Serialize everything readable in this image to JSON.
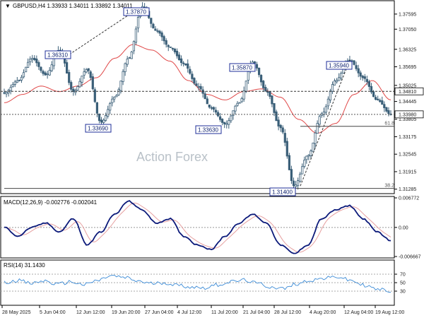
{
  "header": {
    "title": "GBPUSD,H4  1.33933 1.34011 1.33892 1.34011",
    "arrow": "▼"
  },
  "watermark": "Action Forex",
  "price_levels": [
    "1.37855",
    "1.37585",
    "1.37320",
    "1.37050",
    "1.36785",
    "1.36515",
    "1.36250",
    "1.35980",
    "1.35715",
    "1.35445",
    "1.35175",
    "1.34910",
    "1.34640",
    "1.34375",
    "1.34105",
    "1.33835",
    "1.33570",
    "1.33300",
    "1.33035",
    "1.32765",
    "1.32495",
    "1.32230",
    "1.31960",
    "1.31695",
    "1.31425",
    "1.31155",
    "1.30890",
    "1.30620"
  ],
  "price_tick_labels": [
    "1.37595",
    "1.37050",
    "1.36325",
    "1.35695",
    "1.35025",
    "1.34445",
    "1.33805",
    "1.33175",
    "1.32545",
    "1.31915",
    "1.31285"
  ],
  "current_price_label": "1.33980",
  "hline_price_label": "1.34810",
  "fib_labels": {
    "f618": "61.8",
    "f382": "38.2"
  },
  "macd": {
    "title": "MACD(12,26,9) -0.002776 -0.002041",
    "ticks": [
      "0.006772",
      "0.00",
      "-0.006667"
    ]
  },
  "rsi": {
    "title": "RSI(14) 31.1430",
    "ticks": [
      "70",
      "50",
      "30"
    ]
  },
  "time_labels": [
    "28 May 2025",
    "5 Jun 04:00",
    "12 Jun 12:00",
    "19 Jun 20:00",
    "27 Jun 04:00",
    "4 Jul 12:00",
    "11 Jul 20:00",
    "21 Jul 04:00",
    "28 Jul 12:00",
    "4 Aug 20:00",
    "12 Aug 04:00",
    "19 Aug 12:00"
  ],
  "chart_data": {
    "type": "line",
    "symbol": "GBPUSD",
    "timeframe": "H4",
    "ohlc_last": {
      "open": 1.33933,
      "high": 1.34011,
      "low": 1.33892,
      "close": 1.34011
    },
    "close_anchors": [
      1.3475,
      1.352,
      1.36,
      1.354,
      1.363,
      1.348,
      1.356,
      1.3369,
      1.346,
      1.36,
      1.3787,
      1.37,
      1.364,
      1.358,
      1.35,
      1.342,
      1.3363,
      1.344,
      1.3587,
      1.348,
      1.335,
      1.314,
      1.325,
      1.34,
      1.352,
      1.3594,
      1.353,
      1.345,
      1.3398
    ],
    "ma_anchors": [
      1.344,
      1.347,
      1.35,
      1.348,
      1.35,
      1.353,
      1.36,
      1.365,
      1.363,
      1.359,
      1.352,
      1.347,
      1.345,
      1.348,
      1.349,
      1.346,
      1.338,
      1.333,
      1.3365,
      1.347,
      1.352,
      1.345
    ],
    "peak_labels": [
      {
        "text": "1.36310",
        "price": 1.3631
      },
      {
        "text": "1.37870",
        "price": 1.3787
      },
      {
        "text": "1.33690",
        "price": 1.3369
      },
      {
        "text": "1.33630",
        "price": 1.3363
      },
      {
        "text": "1.35870",
        "price": 1.3587
      },
      {
        "text": "1.31400",
        "price": 1.314
      },
      {
        "text": "1.35940",
        "price": 1.3594
      }
    ],
    "horizontal_line": 1.3481,
    "current_price": 1.3398,
    "fibonacci": [
      {
        "level": "61.8",
        "price": 1.3355
      },
      {
        "level": "38.2",
        "price": 1.3131
      }
    ],
    "macd": {
      "value": -0.002776,
      "signal": -0.002041,
      "ylim": [
        -0.006667,
        0.006772
      ],
      "anchors": [
        0.0,
        -0.002,
        0.0,
        0.001,
        -0.001,
        0.002,
        -0.004,
        -0.001,
        0.003,
        0.006,
        0.004,
        0.001,
        0.002,
        -0.002,
        -0.004,
        -0.005,
        -0.002,
        0.001,
        0.003,
        0.001,
        -0.004,
        -0.006,
        -0.004,
        0.002,
        0.004,
        0.005,
        0.002,
        -0.001,
        -0.003
      ]
    },
    "rsi": {
      "value": 31.143,
      "ylim": [
        0,
        100
      ],
      "levels": [
        70,
        50,
        30
      ],
      "anchors": [
        50,
        56,
        48,
        54,
        46,
        52,
        45,
        55,
        66,
        62,
        54,
        48,
        50,
        44,
        40,
        38,
        45,
        52,
        56,
        48,
        40,
        36,
        48,
        56,
        60,
        64,
        55,
        44,
        34,
        31
      ]
    },
    "x_tick_labels": [
      "28 May 2025",
      "5 Jun 04:00",
      "12 Jun 12:00",
      "19 Jun 20:00",
      "27 Jun 04:00",
      "4 Jul 12:00",
      "11 Jul 20:00",
      "21 Jul 04:00",
      "28 Jul 12:00",
      "4 Aug 20:00",
      "12 Aug 04:00",
      "19 Aug 12:00"
    ],
    "colors": {
      "price": "#3b5f78",
      "ma": "#e04848",
      "macd": "#0c1a7a",
      "signal": "#e6a0a0",
      "rsi": "#3a8ad6",
      "label_box": "#1f2f9a"
    }
  }
}
